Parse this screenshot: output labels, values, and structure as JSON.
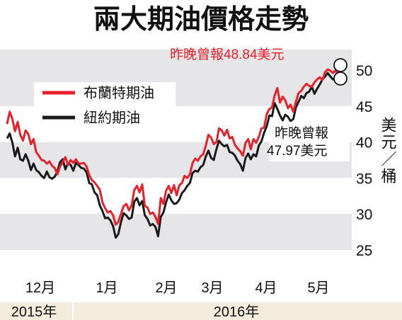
{
  "chart_data": {
    "type": "line",
    "title": "兩大期油價格走勢",
    "ylabel": "美元／桶",
    "ylim": [
      25,
      50
    ],
    "yticks": [
      25,
      30,
      35,
      40,
      45,
      50
    ],
    "grid": "horizontal bands",
    "legend_position": "top-left",
    "months": [
      "12月",
      "1月",
      "2月",
      "3月",
      "4月",
      "5月"
    ],
    "years": [
      "2015年",
      "2016年"
    ],
    "annotations": {
      "brent_last": "昨晚曾報48.84美元",
      "wti_last_line1": "昨晚曾報",
      "wti_last_line2": "47.97美元"
    },
    "series": [
      {
        "name": "布蘭特期油",
        "color": "#e8202a",
        "values": [
          42.5,
          44.2,
          43.2,
          41.5,
          42.8,
          41.0,
          40.2,
          41.6,
          41.1,
          39.7,
          40.4,
          38.6,
          38.1,
          37.5,
          37.4,
          37.0,
          37.3,
          36.7,
          36.4,
          35.5,
          36.6,
          37.2,
          37.9,
          36.8,
          37.5,
          37.1,
          37.6,
          37.0,
          37.0,
          37.1,
          36.6,
          35.4,
          34.7,
          34.4,
          33.9,
          33.4,
          31.6,
          30.8,
          30.2,
          30.4,
          29.8,
          28.5,
          28.9,
          30.0,
          31.1,
          31.4,
          30.5,
          31.2,
          33.3,
          33.9,
          33.0,
          34.1,
          31.1,
          30.9,
          30.0,
          30.2,
          29.6,
          28.6,
          32.2,
          31.4,
          33.2,
          33.9,
          32.9,
          34.0,
          32.6,
          34.0,
          34.3,
          35.3,
          35.0,
          35.5,
          37.1,
          37.7,
          37.4,
          38.0,
          38.3,
          39.5,
          41.0,
          40.6,
          39.7,
          40.0,
          41.9,
          41.6,
          40.9,
          41.7,
          40.5,
          40.7,
          39.6,
          39.1,
          38.7,
          38.1,
          39.9,
          40.4,
          39.0,
          40.4,
          39.9,
          40.7,
          41.9,
          42.0,
          43.9,
          44.6,
          44.8,
          46.5,
          47.5,
          45.5,
          46.3,
          45.8,
          44.7,
          45.2,
          44.2,
          45.6,
          46.8,
          47.1,
          47.7,
          48.1,
          47.8,
          47.7,
          48.3,
          48.7,
          49.0,
          48.6,
          49.7,
          50.1,
          49.9,
          49.6,
          50.0,
          48.8
        ]
      },
      {
        "name": "紐約期油",
        "color": "#1a1a1a",
        "values": [
          40.5,
          41.2,
          39.9,
          38.0,
          39.2,
          37.6,
          37.4,
          38.3,
          37.4,
          36.1,
          37.0,
          36.1,
          35.8,
          35.3,
          35.0,
          35.9,
          35.1,
          34.9,
          35.2,
          35.9,
          37.2,
          37.6,
          36.2,
          37.1,
          36.8,
          36.0,
          37.1,
          36.8,
          36.4,
          36.3,
          35.8,
          34.3,
          34.1,
          33.0,
          32.6,
          31.2,
          30.4,
          29.4,
          29.5,
          29.1,
          28.3,
          26.7,
          27.2,
          28.9,
          30.1,
          29.8,
          29.3,
          29.5,
          31.7,
          32.2,
          31.2,
          31.8,
          29.8,
          29.3,
          28.4,
          28.6,
          28.2,
          26.9,
          29.6,
          30.2,
          31.6,
          32.7,
          31.9,
          31.4,
          31.5,
          32.0,
          32.9,
          33.3,
          33.9,
          34.3,
          35.7,
          36.0,
          35.9,
          36.5,
          36.8,
          38.0,
          38.8,
          37.8,
          37.5,
          39.0,
          40.2,
          39.7,
          39.4,
          39.6,
          38.6,
          38.5,
          38.1,
          37.4,
          36.9,
          36.0,
          37.8,
          38.4,
          37.6,
          38.3,
          38.0,
          39.5,
          40.1,
          41.3,
          42.2,
          43.7,
          43.6,
          45.4,
          44.6,
          43.7,
          43.0,
          43.8,
          43.5,
          42.9,
          43.2,
          44.8,
          45.6,
          46.4,
          46.1,
          46.8,
          47.0,
          47.7,
          46.7,
          47.4,
          48.0,
          48.7,
          49.1,
          49.6,
          49.1,
          48.7,
          49.0,
          48.0
        ]
      }
    ]
  }
}
